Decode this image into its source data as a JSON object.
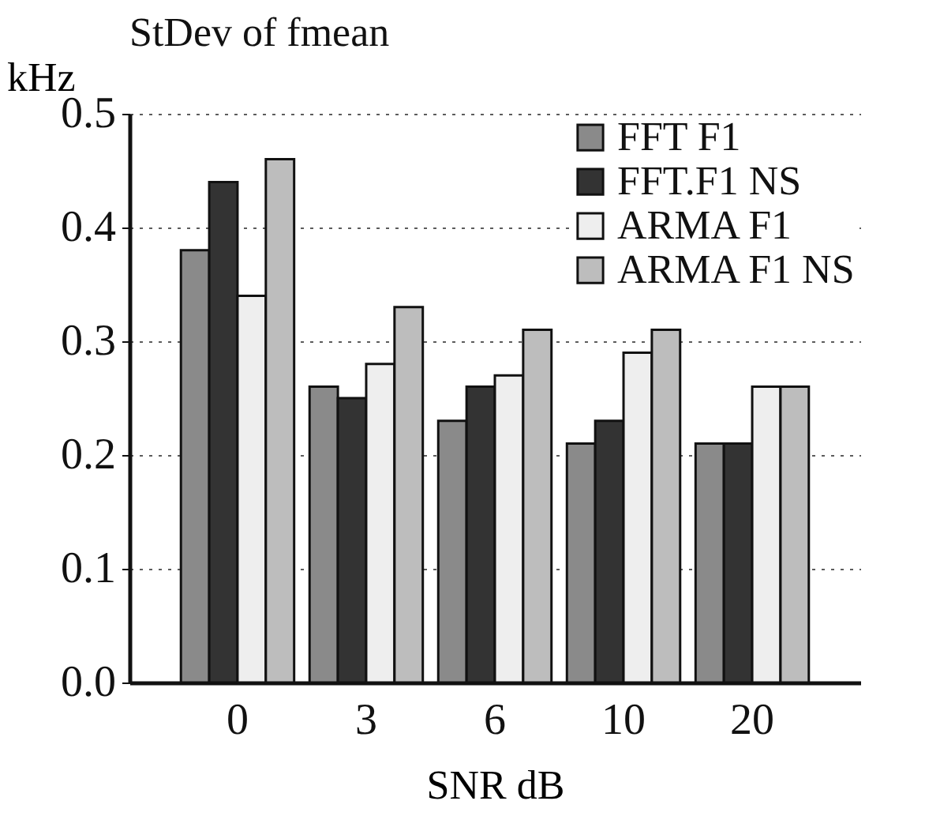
{
  "chart_data": {
    "type": "bar",
    "title": "StDev of fmean",
    "xlabel": "SNR dB",
    "ylabel": "kHz",
    "categories": [
      "0",
      "3",
      "6",
      "10",
      "20"
    ],
    "series": [
      {
        "name": "FFT F1",
        "color": "#8a8a8a",
        "values": [
          0.38,
          0.26,
          0.23,
          0.21,
          0.21
        ]
      },
      {
        "name": "FFT.F1 NS",
        "color": "#333333",
        "values": [
          0.44,
          0.25,
          0.26,
          0.23,
          0.21
        ]
      },
      {
        "name": "ARMA F1",
        "color": "#eeeeee",
        "values": [
          0.34,
          0.28,
          0.27,
          0.29,
          0.26
        ]
      },
      {
        "name": "ARMA F1 NS",
        "color": "#bdbdbd",
        "values": [
          0.46,
          0.33,
          0.31,
          0.31,
          0.26
        ]
      }
    ],
    "ylim": [
      0,
      0.5
    ],
    "yticks": [
      {
        "value": 0,
        "label": "0.0"
      },
      {
        "value": 0.1,
        "label": "0.1"
      },
      {
        "value": 0.2,
        "label": "0.2"
      },
      {
        "value": 0.3,
        "label": "0.3"
      },
      {
        "value": 0.4,
        "label": "0.4"
      },
      {
        "value": 0.5,
        "label": "0.5"
      }
    ],
    "grid": "y",
    "legend": "top right"
  }
}
